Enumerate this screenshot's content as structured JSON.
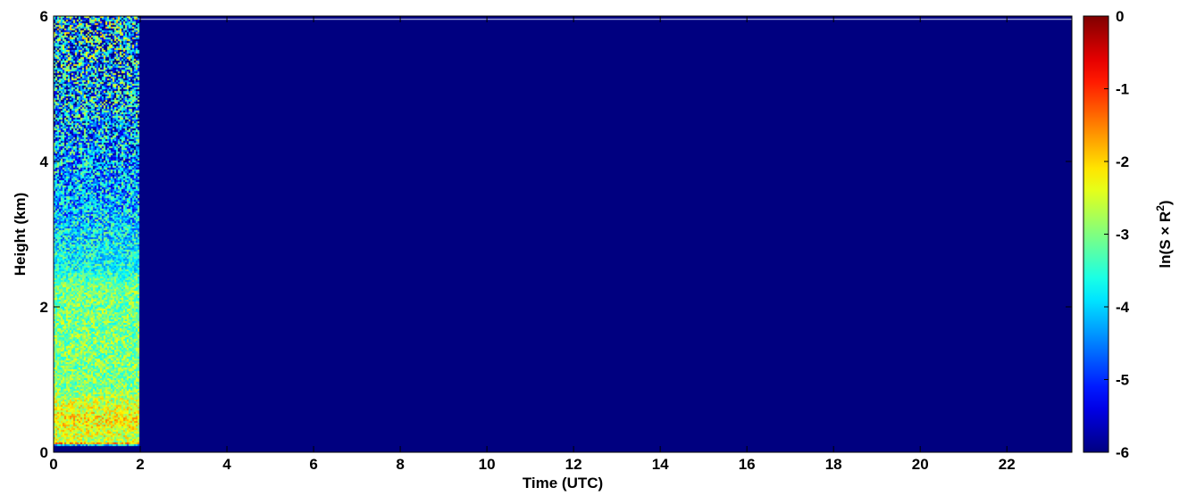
{
  "chart_data": {
    "type": "heatmap",
    "title": "",
    "xlabel": "Time (UTC)",
    "ylabel": "Height (km)",
    "xlim": [
      0,
      23.5
    ],
    "ylim": [
      0,
      6
    ],
    "x_ticks": [
      "0",
      "2",
      "4",
      "6",
      "8",
      "10",
      "12",
      "14",
      "16",
      "18",
      "20",
      "22"
    ],
    "y_ticks": [
      "0",
      "2",
      "4",
      "6"
    ],
    "colorbar": {
      "label": "ln(S × R²)",
      "label_parts": {
        "pre": "ln(S × R",
        "sup": "2",
        "post": ")"
      },
      "range": [
        -6,
        0
      ],
      "ticks": [
        "0",
        "-1",
        "-2",
        "-3",
        "-4",
        "-5",
        "-6"
      ],
      "colormap": "jet"
    },
    "background_value": -6,
    "data_window_hours": [
      0,
      1.97
    ],
    "profile": [
      {
        "height_km": 0.0,
        "value": -6.0
      },
      {
        "height_km": 0.09,
        "value": -6.0
      },
      {
        "height_km": 0.11,
        "value": -1.0
      },
      {
        "height_km": 0.14,
        "value": -2.6
      },
      {
        "height_km": 0.3,
        "value": -2.4
      },
      {
        "height_km": 0.45,
        "value": -2.2
      },
      {
        "height_km": 0.65,
        "value": -2.5
      },
      {
        "height_km": 0.9,
        "value": -3.0
      },
      {
        "height_km": 1.5,
        "value": -3.0
      },
      {
        "height_km": 2.3,
        "value": -3.1
      },
      {
        "height_km": 2.5,
        "value": -3.6
      },
      {
        "height_km": 3.5,
        "value": -4.2
      },
      {
        "height_km": 4.5,
        "value": -4.4
      },
      {
        "height_km": 6.0,
        "value": -4.3
      }
    ],
    "grid": false
  }
}
